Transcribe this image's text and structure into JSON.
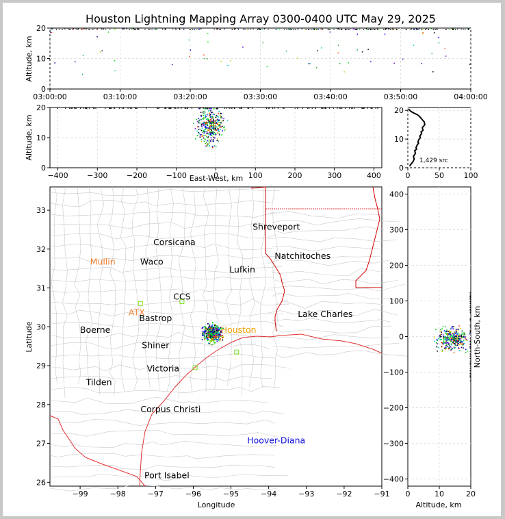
{
  "title": "Houston Lightning Mapping Array 0300-0400 UTC May 29, 2025",
  "colors": {
    "background": "#ffffff",
    "frame": "#c8c8c8",
    "coast": "#e03030",
    "state_border": "#d00000",
    "county": "#c8c8c8",
    "histogram": "#000000"
  },
  "chart_data": [
    {
      "id": "time_height",
      "type": "scatter",
      "xlabel": "",
      "ylabel": "Altitude, km",
      "xlim": [
        "03:00:00",
        "04:00:00"
      ],
      "ylim": [
        0,
        20
      ],
      "x_ticks": [
        "03:00:00",
        "03:10:00",
        "03:20:00",
        "03:30:00",
        "03:40:00",
        "03:50:00",
        "04:00:00"
      ],
      "y_ticks": [
        "0",
        "10",
        "20"
      ],
      "grid": true
    },
    {
      "id": "ew_height",
      "type": "scatter",
      "xlabel": "East-West, km",
      "ylabel": "Altitude, km",
      "xlim": [
        -420,
        420
      ],
      "ylim": [
        0,
        20
      ],
      "x_ticks": [
        "−400",
        "−300",
        "−200",
        "−100",
        "0",
        "100",
        "200",
        "300",
        "400"
      ],
      "y_ticks": [
        "0",
        "10",
        "20"
      ],
      "grid": true
    },
    {
      "id": "altitude_histogram",
      "type": "line",
      "xlabel": "",
      "ylabel": "",
      "xlim": [
        0,
        100
      ],
      "ylim": [
        0,
        21
      ],
      "x_ticks": [
        "0",
        "50",
        "100"
      ],
      "y_ticks": [
        "0",
        "10",
        "20"
      ],
      "annotation": "1,429 src",
      "series": [
        {
          "x": [
            3,
            4,
            6,
            8,
            10,
            9,
            12,
            11,
            14,
            13,
            15,
            17,
            16,
            18,
            20,
            19,
            22,
            21,
            24,
            23,
            25,
            27,
            26,
            24,
            22,
            20,
            18,
            15,
            10,
            6,
            3,
            1
          ],
          "y": [
            0.5,
            1,
            1.5,
            2,
            3,
            4,
            5,
            6,
            6.5,
            7,
            8,
            8.5,
            9,
            10,
            10.5,
            11,
            12,
            12.5,
            13,
            14,
            14.5,
            15,
            16,
            16.5,
            17,
            17.5,
            18,
            18.5,
            19,
            19.5,
            20,
            20.5
          ]
        }
      ]
    },
    {
      "id": "plan_view",
      "type": "scatter",
      "xlabel": "Longitude",
      "ylabel": "Latitude",
      "xlim": [
        -99.8,
        -91
      ],
      "ylim": [
        25.9,
        33.6
      ],
      "x_ticks": [
        "−99",
        "−98",
        "−97",
        "−96",
        "−95",
        "−94",
        "−93",
        "−92",
        "−91"
      ],
      "y_ticks": [
        "26",
        "27",
        "28",
        "29",
        "30",
        "31",
        "32",
        "33"
      ],
      "cities": [
        {
          "name": "Shreveport",
          "lon": -93.8,
          "lat": 32.5,
          "color": "#000000"
        },
        {
          "name": "Corsicana",
          "lon": -96.5,
          "lat": 32.1,
          "color": "#000000"
        },
        {
          "name": "Natchitoches",
          "lon": -93.1,
          "lat": 31.75,
          "color": "#000000"
        },
        {
          "name": "Mullin",
          "lon": -98.4,
          "lat": 31.6,
          "color": "#f08030"
        },
        {
          "name": "Waco",
          "lon": -97.1,
          "lat": 31.6,
          "color": "#000000"
        },
        {
          "name": "Lufkin",
          "lon": -94.7,
          "lat": 31.4,
          "color": "#000000"
        },
        {
          "name": "CCS",
          "lon": -96.3,
          "lat": 30.7,
          "color": "#000000"
        },
        {
          "name": "ATX",
          "lon": -97.5,
          "lat": 30.3,
          "color": "#f08030"
        },
        {
          "name": "Lake Charles",
          "lon": -92.5,
          "lat": 30.25,
          "color": "#000000"
        },
        {
          "name": "Bastrop",
          "lon": -97.0,
          "lat": 30.15,
          "color": "#000000"
        },
        {
          "name": "Boerne",
          "lon": -98.6,
          "lat": 29.85,
          "color": "#000000"
        },
        {
          "name": "Houston",
          "lon": -94.8,
          "lat": 29.85,
          "color": "#f0a000"
        },
        {
          "name": "Shiner",
          "lon": -97.0,
          "lat": 29.45,
          "color": "#000000"
        },
        {
          "name": "Victoria",
          "lon": -96.8,
          "lat": 28.85,
          "color": "#000000"
        },
        {
          "name": "Tilden",
          "lon": -98.5,
          "lat": 28.5,
          "color": "#000000"
        },
        {
          "name": "Corpus Christi",
          "lon": -96.6,
          "lat": 27.8,
          "color": "#000000"
        },
        {
          "name": "Hoover-Diana",
          "lon": -93.8,
          "lat": 27.0,
          "color": "#1010e0"
        },
        {
          "name": "Port Isabel",
          "lon": -96.7,
          "lat": 26.1,
          "color": "#000000"
        }
      ]
    },
    {
      "id": "ns_height",
      "type": "scatter",
      "xlabel": "Altitude, km",
      "ylabel": "North-South, km",
      "xlim": [
        0,
        20
      ],
      "ylim": [
        -420,
        420
      ],
      "x_ticks": [
        "0",
        "10",
        "20"
      ],
      "y_ticks": [
        "−400",
        "−300",
        "−200",
        "−100",
        "0",
        "100",
        "200",
        "300",
        "400"
      ],
      "grid": true
    }
  ]
}
